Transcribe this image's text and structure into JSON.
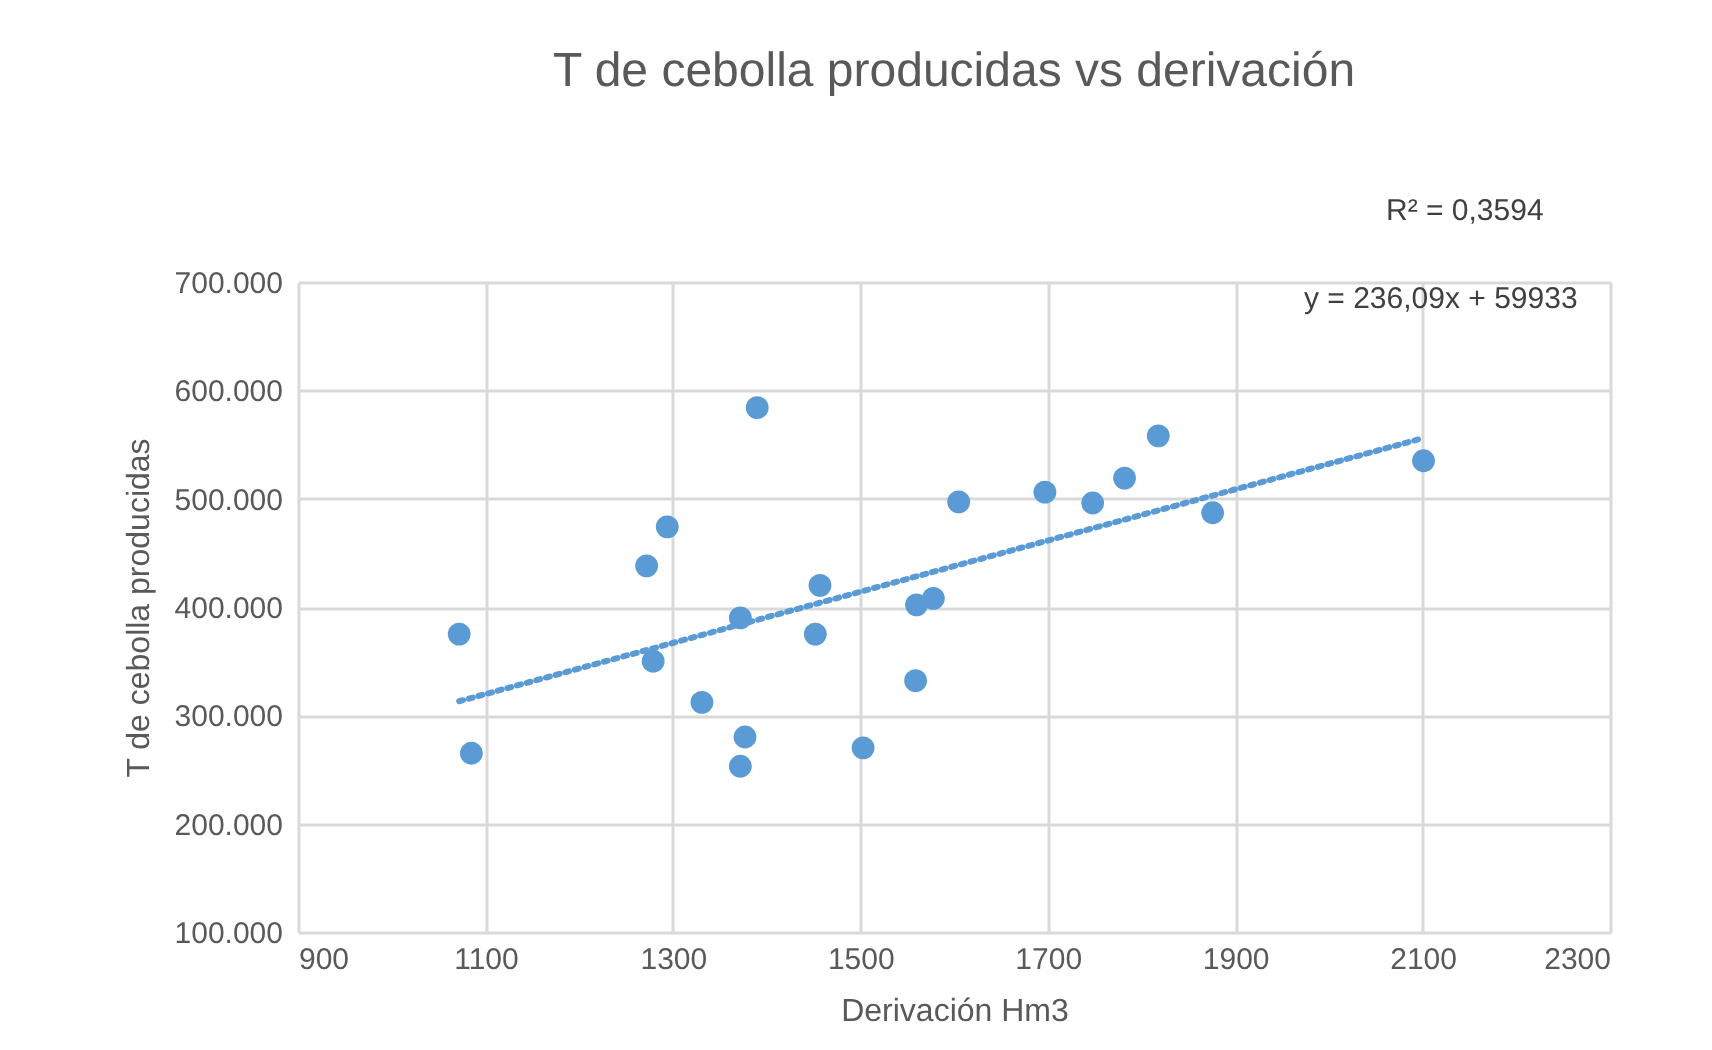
{
  "chart_data": {
    "type": "scatter",
    "title": "T de cebolla producidas vs derivación",
    "xlabel": "Derivación Hm3",
    "ylabel": "T de cebolla producidas",
    "annotations": [
      "R² = 0,3594",
      "y = 236,09x + 59933"
    ],
    "series": [
      {
        "color": "#5b9bd5",
        "marker": "circle",
        "x": [
          1072,
          1085,
          1272,
          1294,
          1279,
          1331,
          1390,
          1372,
          1377,
          1372,
          1457,
          1452,
          1503,
          1559,
          1560,
          1578,
          1605,
          1697,
          1748,
          1782,
          1818,
          1876,
          2101
        ],
        "values": [
          375000,
          265000,
          438000,
          474000,
          350000,
          312000,
          584000,
          390000,
          280000,
          253000,
          420000,
          375000,
          270000,
          332000,
          402000,
          408000,
          497000,
          506000,
          496000,
          519000,
          558000,
          487000,
          535000
        ]
      },
      {
        "type": "line",
        "line_style": "dotted",
        "color": "#5b9bd5",
        "x": [
          1072,
          2101
        ],
        "values": [
          313000,
          556000
        ]
      }
    ],
    "xlim": [
      900,
      2300
    ],
    "xticks": [
      900,
      1100,
      1300,
      1500,
      1700,
      1900,
      2100,
      2300
    ],
    "ylim": [
      100000,
      700000
    ],
    "yticks": [
      {
        "value": 100000,
        "label": "100.000"
      },
      {
        "value": 200000,
        "label": "200.000"
      },
      {
        "value": 300000,
        "label": "300.000"
      },
      {
        "value": 400000,
        "label": "400.000"
      },
      {
        "value": 500000,
        "label": "500.000"
      },
      {
        "value": 600000,
        "label": "600.000"
      },
      {
        "value": 700000,
        "label": "700.000"
      }
    ],
    "grid": true
  }
}
